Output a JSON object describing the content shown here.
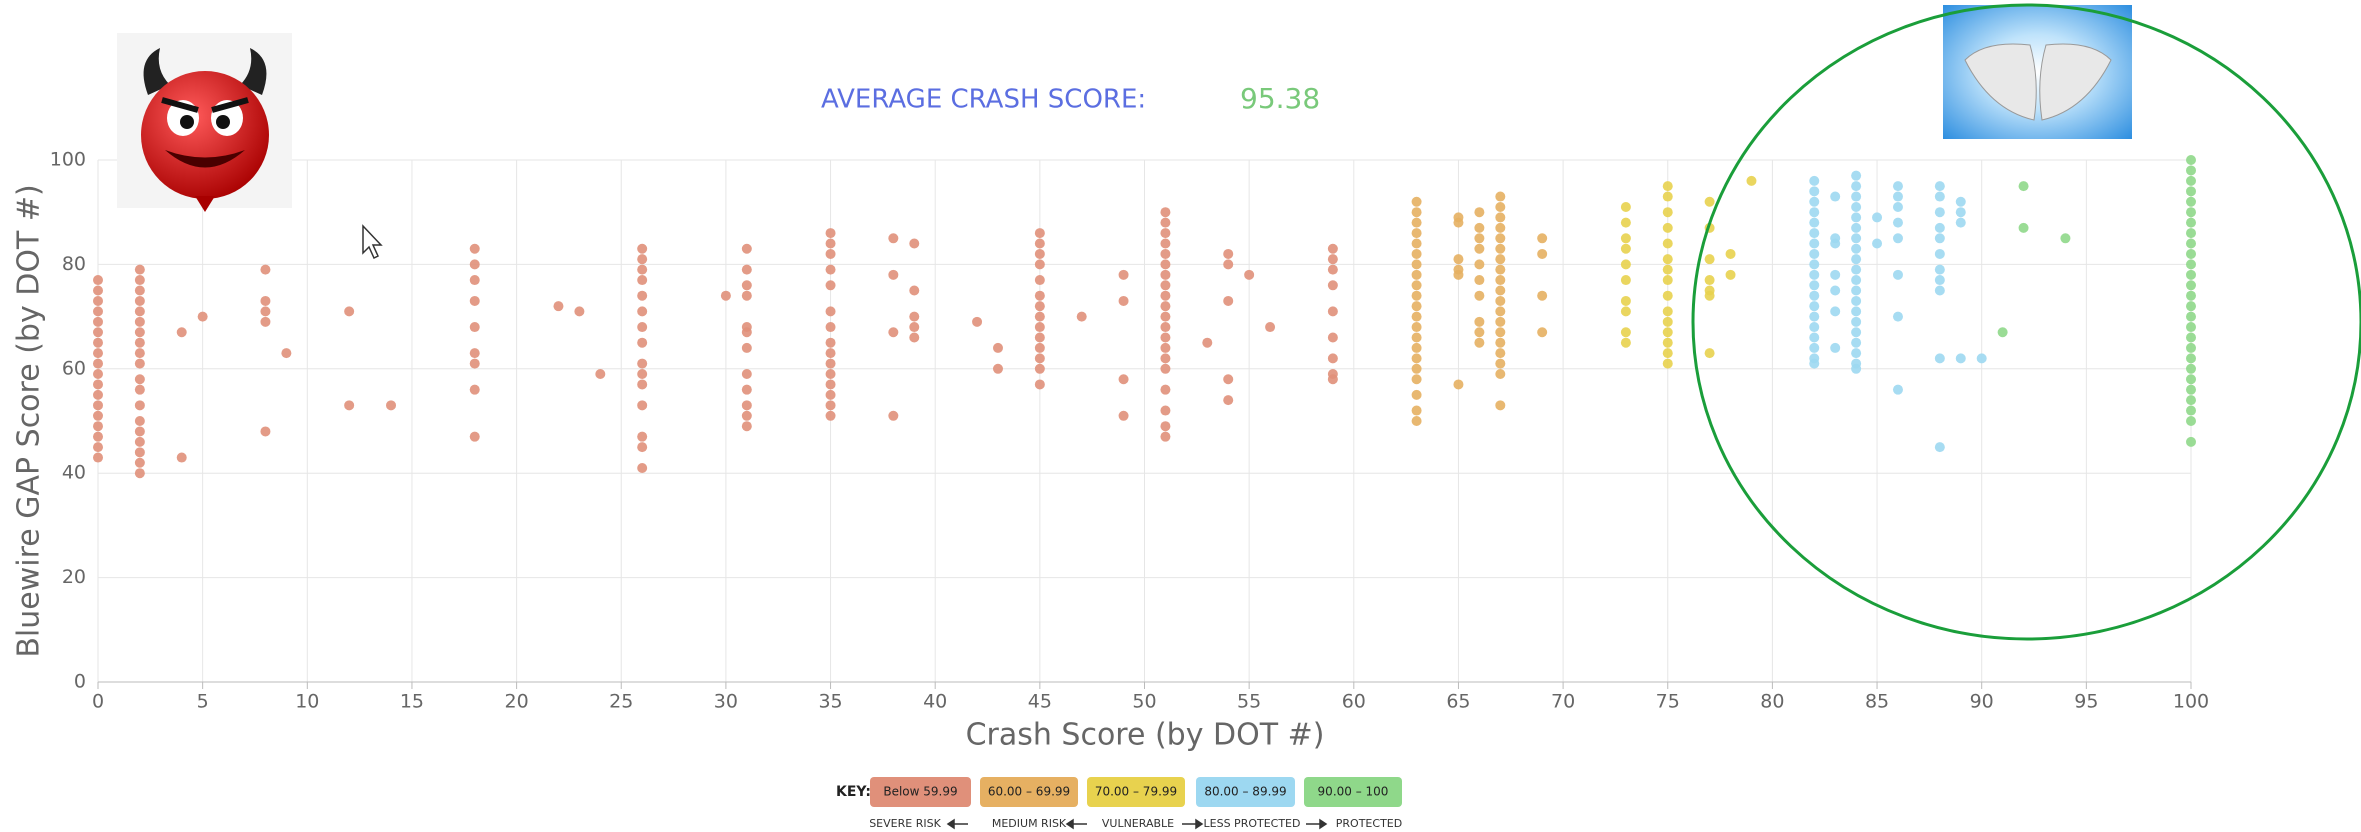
{
  "chart_data": {
    "type": "scatter",
    "title": "AVERAGE CRASH SCORE:",
    "title_value": "95.38",
    "x_label": "Crash Score (by DOT #)",
    "y_label": "Bluewire GAP Score (by DOT #)",
    "xlim": [
      0,
      100
    ],
    "ylim": [
      0,
      100
    ],
    "xticks": [
      0,
      5,
      10,
      15,
      20,
      25,
      30,
      35,
      40,
      45,
      50,
      55,
      60,
      65,
      70,
      75,
      80,
      85,
      90,
      95,
      100
    ],
    "yticks": [
      0,
      20,
      40,
      60,
      80,
      100
    ],
    "grid": true,
    "legend_title": "KEY:",
    "key_captions": [
      "SEVERE RISK",
      "MEDIUM RISK",
      "VULNERABLE",
      "LESS PROTECTED",
      "PROTECTED"
    ],
    "series": [
      {
        "name": "Below 59.99",
        "color": "#e0907a",
        "x": [
          0,
          0,
          0,
          0,
          0,
          0,
          0,
          0,
          0,
          0,
          0,
          0,
          0,
          0,
          0,
          0,
          0,
          0,
          2,
          2,
          2,
          2,
          2,
          2,
          2,
          2,
          2,
          2,
          2,
          2,
          2,
          2,
          2,
          2,
          2,
          2,
          2,
          4,
          4,
          5,
          8,
          8,
          8,
          8,
          8,
          9,
          12,
          12,
          14,
          18,
          18,
          18,
          18,
          18,
          18,
          18,
          18,
          18,
          22,
          23,
          24,
          26,
          26,
          26,
          26,
          26,
          26,
          26,
          26,
          26,
          26,
          26,
          26,
          26,
          26,
          26,
          30,
          31,
          31,
          31,
          31,
          31,
          31,
          31,
          31,
          31,
          31,
          31,
          31,
          35,
          35,
          35,
          35,
          35,
          35,
          35,
          35,
          35,
          35,
          35,
          35,
          35,
          35,
          35,
          38,
          38,
          38,
          38,
          39,
          39,
          39,
          39,
          39,
          42,
          43,
          43,
          45,
          45,
          45,
          45,
          45,
          45,
          45,
          45,
          45,
          45,
          45,
          45,
          45,
          45,
          47,
          49,
          49,
          49,
          49,
          51,
          51,
          51,
          51,
          51,
          51,
          51,
          51,
          51,
          51,
          51,
          51,
          51,
          51,
          51,
          51,
          51,
          51,
          51,
          51,
          53,
          54,
          54,
          54,
          54,
          54,
          55,
          56,
          59,
          59,
          59,
          59,
          59,
          59,
          59,
          59,
          59
        ],
        "values": [
          43,
          45,
          47,
          49,
          51,
          53,
          55,
          57,
          59,
          61,
          63,
          65,
          67,
          69,
          71,
          73,
          75,
          77,
          40,
          42,
          44,
          46,
          48,
          50,
          53,
          56,
          58,
          61,
          63,
          65,
          67,
          69,
          71,
          73,
          75,
          77,
          79,
          67,
          43,
          70,
          79,
          73,
          71,
          69,
          48,
          63,
          71,
          53,
          53,
          83,
          80,
          77,
          73,
          68,
          63,
          61,
          56,
          47,
          72,
          71,
          59,
          83,
          81,
          79,
          77,
          74,
          71,
          68,
          65,
          61,
          59,
          57,
          53,
          47,
          45,
          41,
          74,
          83,
          79,
          76,
          74,
          68,
          67,
          64,
          59,
          56,
          53,
          51,
          49,
          86,
          84,
          82,
          79,
          76,
          71,
          68,
          65,
          63,
          61,
          59,
          57,
          55,
          53,
          51,
          85,
          78,
          67,
          51,
          84,
          75,
          70,
          68,
          66,
          69,
          64,
          60,
          86,
          84,
          82,
          80,
          77,
          74,
          72,
          70,
          68,
          66,
          64,
          62,
          60,
          57,
          70,
          78,
          73,
          58,
          51,
          90,
          88,
          86,
          84,
          82,
          80,
          78,
          76,
          74,
          72,
          70,
          68,
          66,
          64,
          62,
          60,
          56,
          52,
          49,
          47,
          65,
          82,
          80,
          73,
          58,
          54,
          78,
          68,
          83,
          81,
          79,
          76,
          71,
          66,
          62,
          59,
          58
        ]
      },
      {
        "name": "60.00 – 69.99",
        "color": "#e6b062",
        "x": [
          63,
          63,
          63,
          63,
          63,
          63,
          63,
          63,
          63,
          63,
          63,
          63,
          63,
          63,
          63,
          63,
          63,
          63,
          63,
          63,
          63,
          65,
          65,
          65,
          65,
          65,
          65,
          66,
          66,
          66,
          66,
          66,
          66,
          66,
          66,
          66,
          66,
          67,
          67,
          67,
          67,
          67,
          67,
          67,
          67,
          67,
          67,
          67,
          67,
          67,
          67,
          67,
          67,
          67,
          67,
          67,
          69,
          69,
          69,
          69
        ],
        "values": [
          92,
          90,
          88,
          86,
          84,
          82,
          80,
          78,
          76,
          74,
          72,
          70,
          68,
          66,
          64,
          62,
          60,
          58,
          55,
          52,
          50,
          89,
          88,
          81,
          79,
          78,
          57,
          90,
          87,
          85,
          83,
          80,
          77,
          74,
          69,
          67,
          65,
          93,
          91,
          89,
          87,
          85,
          83,
          81,
          79,
          77,
          75,
          73,
          71,
          69,
          67,
          65,
          63,
          61,
          59,
          53,
          85,
          82,
          74,
          67
        ]
      },
      {
        "name": "70.00 – 79.99",
        "color": "#e8d24e",
        "x": [
          73,
          73,
          73,
          73,
          73,
          73,
          73,
          73,
          73,
          73,
          75,
          75,
          75,
          75,
          75,
          75,
          75,
          75,
          75,
          75,
          75,
          75,
          75,
          75,
          75,
          77,
          77,
          77,
          77,
          77,
          77,
          77,
          78,
          78,
          79
        ],
        "values": [
          91,
          88,
          85,
          83,
          80,
          77,
          73,
          71,
          67,
          65,
          95,
          93,
          90,
          87,
          84,
          81,
          79,
          77,
          74,
          71,
          69,
          67,
          65,
          63,
          61,
          92,
          87,
          81,
          77,
          75,
          74,
          63,
          82,
          78,
          96
        ]
      },
      {
        "name": "80.00 – 89.99",
        "color": "#9dd8f1",
        "x": [
          82,
          82,
          82,
          82,
          82,
          82,
          82,
          82,
          82,
          82,
          82,
          82,
          82,
          82,
          82,
          82,
          82,
          82,
          82,
          83,
          83,
          83,
          83,
          83,
          83,
          83,
          84,
          84,
          84,
          84,
          84,
          84,
          84,
          84,
          84,
          84,
          84,
          84,
          84,
          84,
          84,
          84,
          84,
          84,
          84,
          84,
          85,
          85,
          86,
          86,
          86,
          86,
          86,
          86,
          86,
          86,
          88,
          88,
          88,
          88,
          88,
          88,
          88,
          88,
          88,
          88,
          88,
          89,
          89,
          89,
          89,
          90
        ],
        "values": [
          96,
          94,
          92,
          90,
          88,
          86,
          84,
          82,
          80,
          78,
          76,
          74,
          72,
          70,
          68,
          66,
          64,
          62,
          61,
          93,
          85,
          84,
          78,
          75,
          71,
          64,
          97,
          95,
          93,
          91,
          89,
          87,
          85,
          83,
          81,
          79,
          77,
          75,
          73,
          71,
          69,
          67,
          65,
          63,
          61,
          60,
          89,
          84,
          95,
          93,
          91,
          88,
          85,
          78,
          70,
          56,
          95,
          93,
          90,
          87,
          85,
          82,
          79,
          77,
          75,
          62,
          45,
          92,
          90,
          88,
          62,
          62
        ]
      },
      {
        "name": "90.00 – 100",
        "color": "#8fd88a",
        "x": [
          91,
          92,
          92,
          94,
          100,
          100,
          100,
          100,
          100,
          100,
          100,
          100,
          100,
          100,
          100,
          100,
          100,
          100,
          100,
          100,
          100,
          100,
          100,
          100,
          100,
          100,
          100,
          100,
          100,
          100,
          100
        ],
        "values": [
          67,
          95,
          87,
          85,
          100,
          98,
          96,
          94,
          92,
          90,
          88,
          86,
          84,
          82,
          80,
          78,
          76,
          74,
          72,
          70,
          68,
          66,
          64,
          62,
          60,
          58,
          56,
          54,
          52,
          50,
          46
        ]
      }
    ]
  }
}
